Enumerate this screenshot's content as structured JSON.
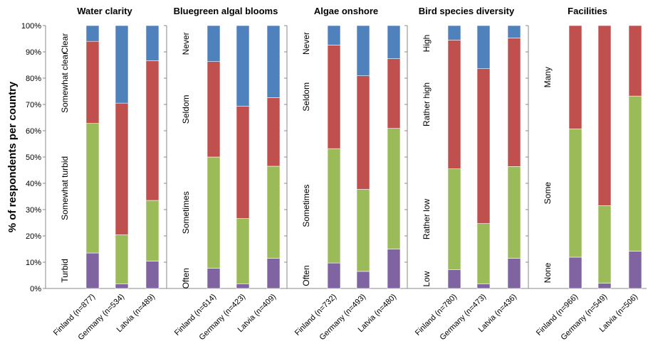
{
  "colors": {
    "series_1": "#8064A2",
    "series_2": "#9BBB59",
    "series_3": "#C0504D",
    "series_4": "#4F81BD"
  },
  "chart_data": {
    "type": "bar",
    "stacked": true,
    "normalized": true,
    "ylabel": "% of respondents per country",
    "ylim": [
      0,
      100
    ],
    "yticks": [
      "0%",
      "10%",
      "20%",
      "30%",
      "40%",
      "50%",
      "60%",
      "70%",
      "80%",
      "90%",
      "100%"
    ],
    "panels": [
      {
        "title": "Water clarity",
        "levels": [
          "Turbid",
          "Somewhat turbid",
          "Somewhat clear",
          "Clear"
        ],
        "categories": [
          "Finland (n=877)",
          "Germany (n=534)",
          "Latvia (n=489)"
        ],
        "series": [
          {
            "values": [
              13.5,
              1.7,
              10.4
            ]
          },
          {
            "values": [
              49.3,
              18.7,
              23.1
            ]
          },
          {
            "values": [
              31.2,
              50.1,
              53.1
            ]
          },
          {
            "values": [
              6.0,
              29.5,
              13.4
            ]
          }
        ]
      },
      {
        "title": "Bluegreen algal blooms",
        "levels": [
          "Often",
          "Sometimes",
          "Seldom",
          "Never"
        ],
        "categories": [
          "Finland (n=614)",
          "Germany (n=423)",
          "Latvia (n=409)"
        ],
        "series": [
          {
            "values": [
              7.7,
              1.8,
              11.5
            ]
          },
          {
            "values": [
              42.3,
              24.8,
              35.0
            ]
          },
          {
            "values": [
              36.3,
              42.7,
              26.1
            ]
          },
          {
            "values": [
              13.7,
              30.7,
              27.4
            ]
          }
        ]
      },
      {
        "title": "Algae onshore",
        "levels": [
          "Often",
          "Sometimes",
          "Seldom",
          "Never"
        ],
        "categories": [
          "Finland (n=732)",
          "Germany (n=493)",
          "Latvia (n=480)"
        ],
        "series": [
          {
            "values": [
              9.7,
              6.5,
              15.0
            ]
          },
          {
            "values": [
              43.5,
              31.2,
              45.9
            ]
          },
          {
            "values": [
              39.4,
              43.2,
              26.5
            ]
          },
          {
            "values": [
              7.4,
              19.1,
              12.6
            ]
          }
        ]
      },
      {
        "title": "Bird species diversity",
        "levels": [
          "Low",
          "Rather low",
          "Rather high",
          "High"
        ],
        "categories": [
          "Finland (n=780)",
          "Germany (n=473)",
          "Latvia (n=436)"
        ],
        "series": [
          {
            "values": [
              7.2,
              1.7,
              11.5
            ]
          },
          {
            "values": [
              38.3,
              23.0,
              34.9
            ]
          },
          {
            "values": [
              49.0,
              58.9,
              48.9
            ]
          },
          {
            "values": [
              5.5,
              16.4,
              4.7
            ]
          }
        ]
      },
      {
        "title": "Facilities",
        "levels": [
          "None",
          "Some",
          "Many"
        ],
        "categories": [
          "Finland (n=966)",
          "Germany (n=549)",
          "Latvia (n=506)"
        ],
        "series": [
          {
            "values": [
              11.9,
              2.0,
              14.2
            ]
          },
          {
            "values": [
              48.8,
              29.5,
              59.0
            ]
          },
          {
            "values": [
              39.3,
              68.5,
              26.8
            ]
          }
        ]
      }
    ]
  }
}
